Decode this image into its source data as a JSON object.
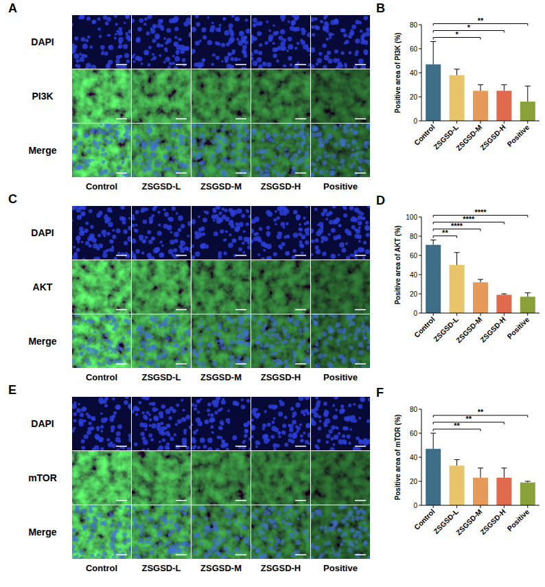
{
  "image_panels": [
    {
      "panel_label": "A",
      "rows": [
        "DAPI",
        "PI3K",
        "Merge"
      ],
      "columns": [
        "Control",
        "ZSGSD-L",
        "ZSGSD-M",
        "ZSGSD-H",
        "Positive"
      ]
    },
    {
      "panel_label": "C",
      "rows": [
        "DAPI",
        "AKT",
        "Merge"
      ],
      "columns": [
        "Control",
        "ZSGSD-L",
        "ZSGSD-M",
        "ZSGSD-H",
        "Positive"
      ]
    },
    {
      "panel_label": "E",
      "rows": [
        "DAPI",
        "mTOR",
        "Merge"
      ],
      "columns": [
        "Control",
        "ZSGSD-L",
        "ZSGSD-M",
        "ZSGSD-H",
        "Positive"
      ]
    }
  ],
  "chart_data": [
    {
      "type": "bar",
      "panel_label": "B",
      "y_label": "Positive area of PI3K (%)",
      "categories": [
        "Control",
        "ZSGSD-L",
        "ZSGSD-M",
        "ZSGSD-H",
        "Positive"
      ],
      "values": [
        47,
        38,
        25,
        25,
        16
      ],
      "errors": [
        19,
        5,
        5,
        5,
        13
      ],
      "colors": [
        "#3d6e87",
        "#e8c56a",
        "#e59a5a",
        "#e06a4e",
        "#8aa13a"
      ],
      "ylim": [
        0,
        80
      ],
      "yticks": [
        0,
        20,
        40,
        60,
        80
      ],
      "comparisons": [
        {
          "groups": [
            "Control",
            "ZSGSD-M"
          ],
          "label": "*"
        },
        {
          "groups": [
            "Control",
            "ZSGSD-H"
          ],
          "label": "*"
        },
        {
          "groups": [
            "Control",
            "Positive"
          ],
          "label": "**"
        }
      ]
    },
    {
      "type": "bar",
      "panel_label": "D",
      "y_label": "Positive area of AKT (%)",
      "categories": [
        "Control",
        "ZSGSD-L",
        "ZSGSD-M",
        "ZSGSD-H",
        "Positive"
      ],
      "values": [
        71,
        50,
        32,
        19,
        17
      ],
      "errors": [
        5,
        13,
        3,
        1,
        4
      ],
      "colors": [
        "#3d6e87",
        "#e8c56a",
        "#e59a5a",
        "#e06a4e",
        "#8aa13a"
      ],
      "ylim": [
        0,
        100
      ],
      "yticks": [
        0,
        20,
        40,
        60,
        80,
        100
      ],
      "comparisons": [
        {
          "groups": [
            "Control",
            "ZSGSD-L"
          ],
          "label": "**"
        },
        {
          "groups": [
            "Control",
            "ZSGSD-M"
          ],
          "label": "****"
        },
        {
          "groups": [
            "Control",
            "ZSGSD-H"
          ],
          "label": "****"
        },
        {
          "groups": [
            "Control",
            "Positive"
          ],
          "label": "****"
        }
      ]
    },
    {
      "type": "bar",
      "panel_label": "F",
      "y_label": "Positive area of mTOR (%)",
      "categories": [
        "Control",
        "ZSGSD-L",
        "ZSGSD-M",
        "ZSGSD-H",
        "Positive"
      ],
      "values": [
        47,
        33,
        23,
        23,
        19
      ],
      "errors": [
        13,
        5,
        8,
        8,
        1
      ],
      "colors": [
        "#3d6e87",
        "#e8c56a",
        "#e59a5a",
        "#e06a4e",
        "#8aa13a"
      ],
      "ylim": [
        0,
        80
      ],
      "yticks": [
        0,
        20,
        40,
        60,
        80
      ],
      "comparisons": [
        {
          "groups": [
            "Control",
            "ZSGSD-M"
          ],
          "label": "**"
        },
        {
          "groups": [
            "Control",
            "ZSGSD-H"
          ],
          "label": "**"
        },
        {
          "groups": [
            "Control",
            "Positive"
          ],
          "label": "**"
        }
      ]
    }
  ]
}
